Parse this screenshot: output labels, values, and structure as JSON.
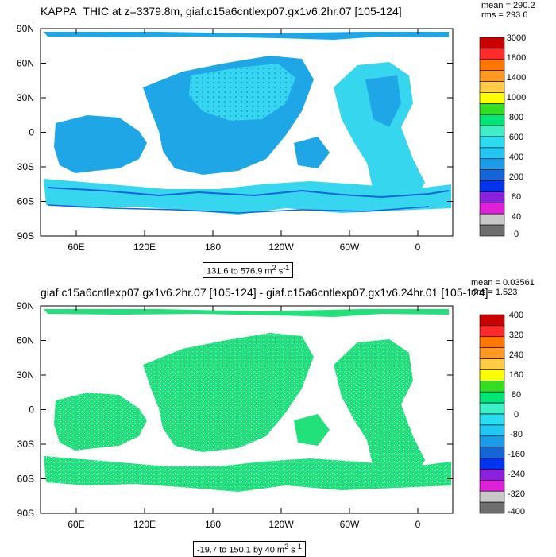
{
  "chart_data": [
    {
      "type": "heatmap",
      "title": "KAPPA_THIC at z=3379.8m, giaf.c15a6cntlexp07.gx1v6.2hr.07 [105-124]",
      "stats": {
        "mean_label": "mean = 290.2",
        "rms_label": "rms = 293.6"
      },
      "lat_ticks": [
        "90N",
        "60N",
        "30N",
        "0",
        "30S",
        "60S",
        "90S"
      ],
      "lon_ticks": [
        "60E",
        "120E",
        "180",
        "120W",
        "60W",
        "0"
      ],
      "range_label": "131.6 to 576.9 m",
      "range_units_sup": "2",
      "range_units_tail": " s",
      "range_units_sup2": "-1",
      "colorbar_labels": [
        "3000",
        "1800",
        "1400",
        "1000",
        "800",
        "600",
        "400",
        "200",
        "80",
        "40",
        "0"
      ],
      "colorbar_colors": [
        "#cc0000",
        "#ff2a2a",
        "#ff7700",
        "#ff9922",
        "#ffcc44",
        "#ffff00",
        "#33dd22",
        "#00e676",
        "#3df0c8",
        "#2adcf0",
        "#22c6f0",
        "#1c9be8",
        "#1466d8",
        "#0033ee",
        "#8a22dd",
        "#e020d8",
        "#c8c8c8",
        "#6e6e6e"
      ]
    },
    {
      "type": "heatmap",
      "title": "giaf.c15a6cntlexp07.gx1v6.2hr.07 [105-124] - giaf.c15a6cntlexp07.gx1v6.24hr.01 [105-124]",
      "stats": {
        "mean_label": "mean = 0.03561",
        "rms_label": "rms = 1.523"
      },
      "lat_ticks": [
        "90N",
        "60N",
        "30N",
        "0",
        "30S",
        "60S",
        "90S"
      ],
      "lon_ticks": [
        "60E",
        "120E",
        "180",
        "120W",
        "60W",
        "0"
      ],
      "range_label": "-19.7 to 150.1 by 40 m",
      "range_units_sup": "2",
      "range_units_tail": " s",
      "range_units_sup2": "-1",
      "colorbar_labels": [
        "400",
        "320",
        "240",
        "160",
        "80",
        "0",
        "-80",
        "-160",
        "-240",
        "-320",
        "-400"
      ],
      "colorbar_colors": [
        "#cc0000",
        "#ff2a2a",
        "#ff7700",
        "#ff9922",
        "#ffcc44",
        "#ffff00",
        "#33dd22",
        "#00e676",
        "#3df0c8",
        "#2adcf0",
        "#22c6f0",
        "#1c9be8",
        "#1466d8",
        "#0033ee",
        "#8a22dd",
        "#e020d8",
        "#c8c8c8",
        "#6e6e6e"
      ]
    }
  ],
  "colors": {
    "ocean_light": "#36d6ee",
    "ocean_mid": "#1ea6e6",
    "ocean_dark": "#1466d8",
    "diff_green": "#22e07a",
    "diff_cyan": "#42e6d0"
  }
}
